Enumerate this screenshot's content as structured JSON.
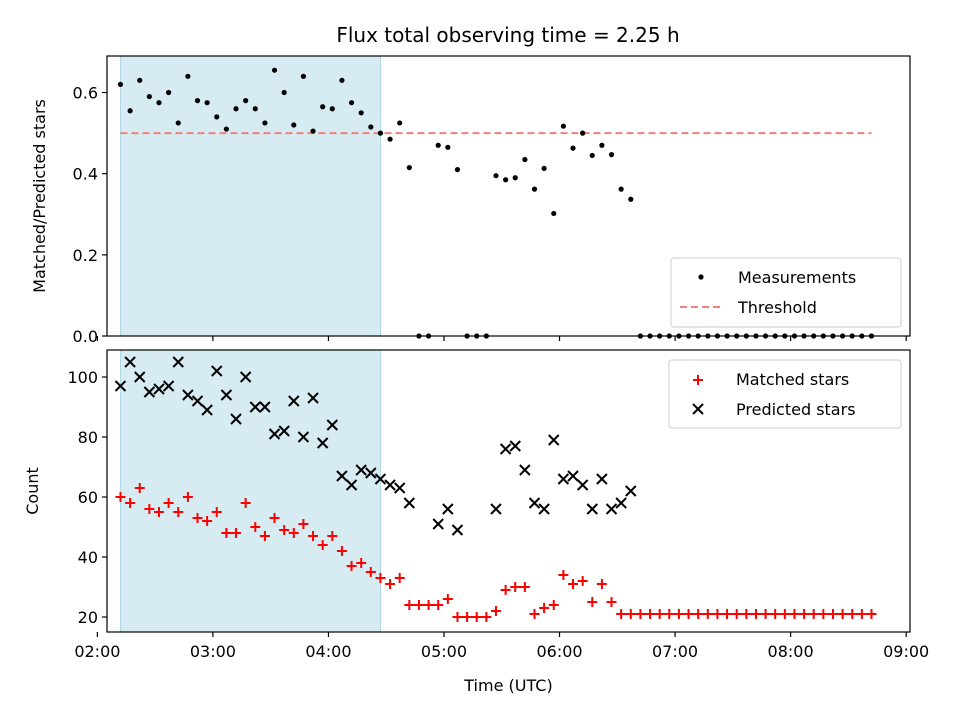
{
  "title": "Flux total observing time = 2.25 h",
  "colors": {
    "shade": "#add8e6",
    "threshold": "#f08080",
    "measurement": "#000000",
    "matched": "#ff0000",
    "predicted": "#000000"
  },
  "chart_data": [
    {
      "type": "scatter",
      "ylabel": "Matched/Predicted stars",
      "ylim": [
        0,
        0.69
      ],
      "yticks": [
        "0.0",
        "0.2",
        "0.4",
        "0.6"
      ],
      "xlim": [
        "02:05",
        "09:02"
      ],
      "grid": false,
      "legend_placement": "lower-right",
      "shaded_interval": [
        "02:12",
        "04:27"
      ],
      "threshold_line": {
        "name": "Threshold",
        "y": 0.5,
        "x_range": [
          "02:12",
          "08:42"
        ]
      },
      "series": [
        {
          "name": "Measurements",
          "x": [
            "02:12",
            "02:17",
            "02:22",
            "02:27",
            "02:32",
            "02:37",
            "02:42",
            "02:47",
            "02:52",
            "02:57",
            "03:02",
            "03:07",
            "03:12",
            "03:17",
            "03:22",
            "03:27",
            "03:32",
            "03:37",
            "03:42",
            "03:47",
            "03:52",
            "03:57",
            "04:02",
            "04:07",
            "04:12",
            "04:17",
            "04:22",
            "04:27",
            "04:32",
            "04:37",
            "04:42",
            "04:47",
            "04:52",
            "04:57",
            "05:02",
            "05:07",
            "05:12",
            "05:17",
            "05:22",
            "05:27",
            "05:32",
            "05:37",
            "05:42",
            "05:47",
            "05:52",
            "05:57",
            "06:02",
            "06:07",
            "06:12",
            "06:17",
            "06:22",
            "06:27",
            "06:32",
            "06:37",
            "06:42",
            "06:47",
            "06:52",
            "06:57",
            "07:02",
            "07:07",
            "07:12",
            "07:17",
            "07:22",
            "07:27",
            "07:32",
            "07:37",
            "07:42",
            "07:47",
            "07:52",
            "07:57",
            "08:02",
            "08:07",
            "08:12",
            "08:17",
            "08:22",
            "08:27",
            "08:32",
            "08:37",
            "08:42"
          ],
          "y": [
            0.62,
            0.555,
            0.63,
            0.59,
            0.575,
            0.6,
            0.525,
            0.64,
            0.58,
            0.575,
            0.54,
            0.51,
            0.56,
            0.58,
            0.56,
            0.525,
            0.655,
            0.6,
            0.52,
            0.64,
            0.505,
            0.565,
            0.56,
            0.63,
            0.575,
            0.55,
            0.515,
            0.5,
            0.485,
            0.525,
            0.415,
            0,
            0,
            0.47,
            0.465,
            0.41,
            0,
            0,
            0,
            0.395,
            0.385,
            0.39,
            0.435,
            0.362,
            0.413,
            0.302,
            0.517,
            0.463,
            0.5,
            0.445,
            0.47,
            0.447,
            0.362,
            0.337,
            0,
            0,
            0,
            0,
            0,
            0,
            0,
            0,
            0,
            0,
            0,
            0,
            0,
            0,
            0,
            0,
            0,
            0,
            0,
            0,
            0,
            0,
            0,
            0,
            0
          ]
        }
      ]
    },
    {
      "type": "scatter",
      "ylabel": "Count",
      "xlabel": "Time (UTC)",
      "ylim": [
        15,
        109
      ],
      "yticks": [
        "20",
        "40",
        "60",
        "80",
        "100"
      ],
      "xlim": [
        "02:05",
        "09:02"
      ],
      "xticks": [
        "02:00",
        "03:00",
        "04:00",
        "05:00",
        "06:00",
        "07:00",
        "08:00",
        "09:00"
      ],
      "grid": false,
      "legend_placement": "top-right",
      "shaded_interval": [
        "02:12",
        "04:27"
      ],
      "series": [
        {
          "name": "Matched stars",
          "x": [
            "02:12",
            "02:17",
            "02:22",
            "02:27",
            "02:32",
            "02:37",
            "02:42",
            "02:47",
            "02:52",
            "02:57",
            "03:02",
            "03:07",
            "03:12",
            "03:17",
            "03:22",
            "03:27",
            "03:32",
            "03:37",
            "03:42",
            "03:47",
            "03:52",
            "03:57",
            "04:02",
            "04:07",
            "04:12",
            "04:17",
            "04:22",
            "04:27",
            "04:32",
            "04:37",
            "04:42",
            "04:47",
            "04:52",
            "04:57",
            "05:02",
            "05:07",
            "05:12",
            "05:17",
            "05:22",
            "05:27",
            "05:32",
            "05:37",
            "05:42",
            "05:47",
            "05:52",
            "05:57",
            "06:02",
            "06:07",
            "06:12",
            "06:17",
            "06:22",
            "06:27",
            "06:32",
            "06:37",
            "06:42",
            "06:47",
            "06:52",
            "06:57",
            "07:02",
            "07:07",
            "07:12",
            "07:17",
            "07:22",
            "07:27",
            "07:32",
            "07:37",
            "07:42",
            "07:47",
            "07:52",
            "07:57",
            "08:02",
            "08:07",
            "08:12",
            "08:17",
            "08:22",
            "08:27",
            "08:32",
            "08:37",
            "08:42"
          ],
          "y": [
            60,
            58,
            63,
            56,
            55,
            58,
            55,
            60,
            53,
            52,
            55,
            48,
            48,
            58,
            50,
            47,
            53,
            49,
            48,
            51,
            47,
            44,
            47,
            42,
            37,
            38,
            35,
            33,
            31,
            33,
            24,
            24,
            24,
            24,
            26,
            20,
            20,
            20,
            20,
            22,
            29,
            30,
            30,
            21,
            23,
            24,
            34,
            31,
            32,
            25,
            31,
            25,
            21,
            21,
            21,
            21,
            21,
            21,
            21,
            21,
            21,
            21,
            21,
            21,
            21,
            21,
            21,
            21,
            21,
            21,
            21,
            21,
            21,
            21,
            21,
            21,
            21,
            21,
            21
          ]
        },
        {
          "name": "Predicted stars",
          "x": [
            "02:12",
            "02:17",
            "02:22",
            "02:27",
            "02:32",
            "02:37",
            "02:42",
            "02:47",
            "02:52",
            "02:57",
            "03:02",
            "03:07",
            "03:12",
            "03:17",
            "03:22",
            "03:27",
            "03:32",
            "03:37",
            "03:42",
            "03:47",
            "03:52",
            "03:57",
            "04:02",
            "04:07",
            "04:12",
            "04:17",
            "04:22",
            "04:27",
            "04:32",
            "04:37",
            "04:42",
            "04:57",
            "05:02",
            "05:07",
            "05:27",
            "05:32",
            "05:37",
            "05:42",
            "05:47",
            "05:52",
            "05:57",
            "06:02",
            "06:07",
            "06:12",
            "06:17",
            "06:22",
            "06:27",
            "06:32",
            "06:37"
          ],
          "y": [
            97,
            105,
            100,
            95,
            96,
            97,
            105,
            94,
            92,
            89,
            102,
            94,
            86,
            100,
            90,
            90,
            81,
            82,
            92,
            80,
            93,
            78,
            84,
            67,
            64,
            69,
            68,
            66,
            64,
            63,
            58,
            51,
            56,
            49,
            56,
            76,
            77,
            69,
            58,
            56,
            79,
            66,
            67,
            64,
            56,
            66,
            56,
            58,
            62
          ]
        }
      ]
    }
  ]
}
